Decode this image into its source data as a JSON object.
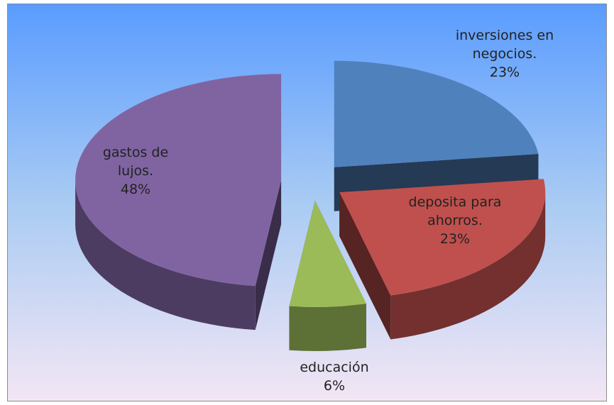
{
  "chart_data": {
    "type": "pie3d",
    "categories": [
      "inversiones en negocios.",
      "deposita para ahorros.",
      "educación",
      "gastos de lujos."
    ],
    "values": [
      23,
      23,
      6,
      48
    ],
    "value_labels": [
      "23%",
      "23%",
      "6%",
      "48%"
    ],
    "colors": [
      "#4f81bd",
      "#c0504d",
      "#9bbb59",
      "#8064a2"
    ]
  }
}
